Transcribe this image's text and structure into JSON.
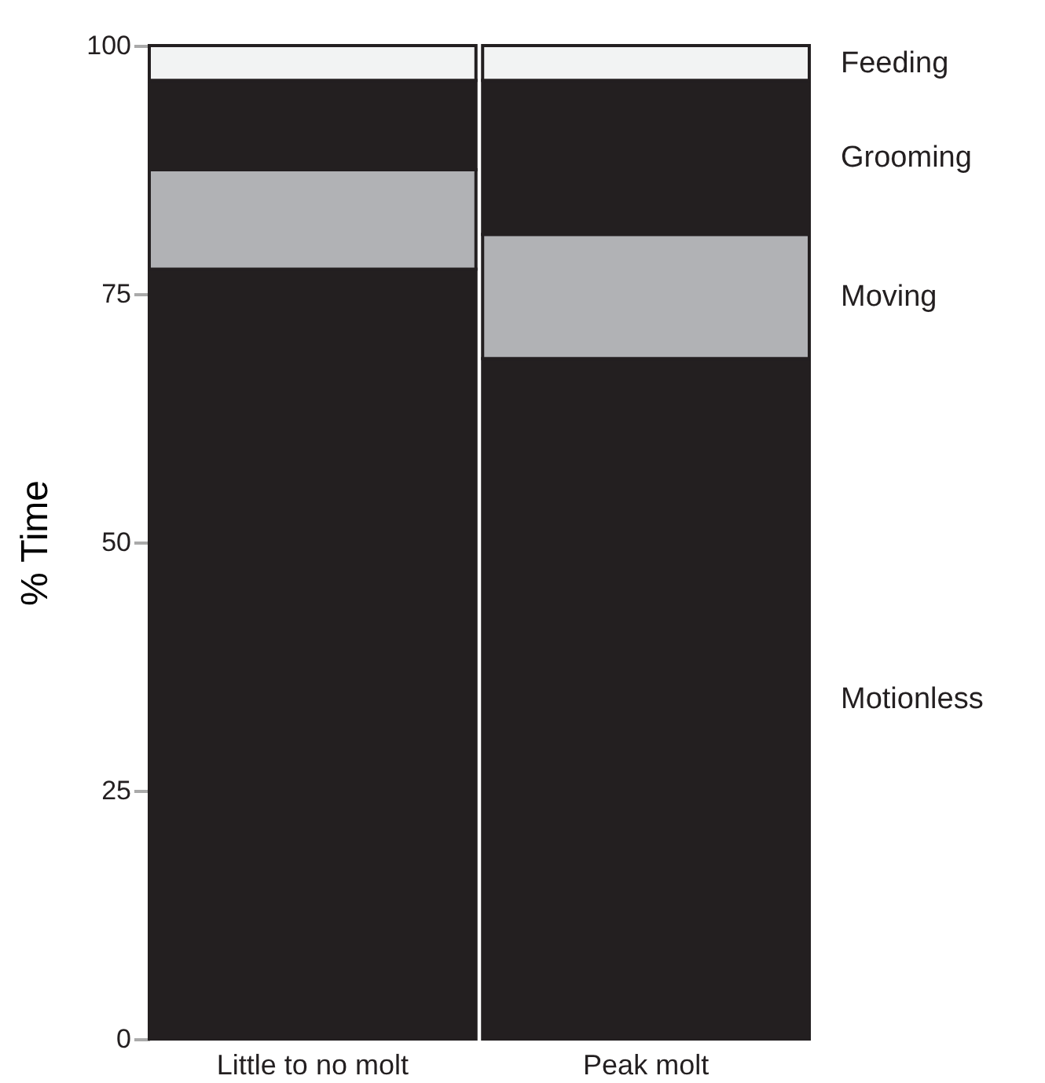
{
  "chart_data": {
    "type": "bar",
    "stacked": true,
    "ylabel": "% Time",
    "categories": [
      "Little to no molt",
      "Peak molt"
    ],
    "series": [
      {
        "name": "Motionless",
        "color": "#231f20",
        "values": [
          77.5,
          68.5
        ]
      },
      {
        "name": "Moving",
        "color": "#b1b2b5",
        "values": [
          10,
          12.5
        ]
      },
      {
        "name": "Grooming",
        "color": "#231f20",
        "values": [
          9,
          15.5
        ]
      },
      {
        "name": "Feeding",
        "color": "#f2f3f3",
        "values": [
          3.5,
          3.5
        ]
      }
    ],
    "ylim": [
      0,
      100
    ],
    "yticks": [
      0,
      25,
      50,
      75,
      100
    ],
    "grid": false,
    "legend": false
  }
}
